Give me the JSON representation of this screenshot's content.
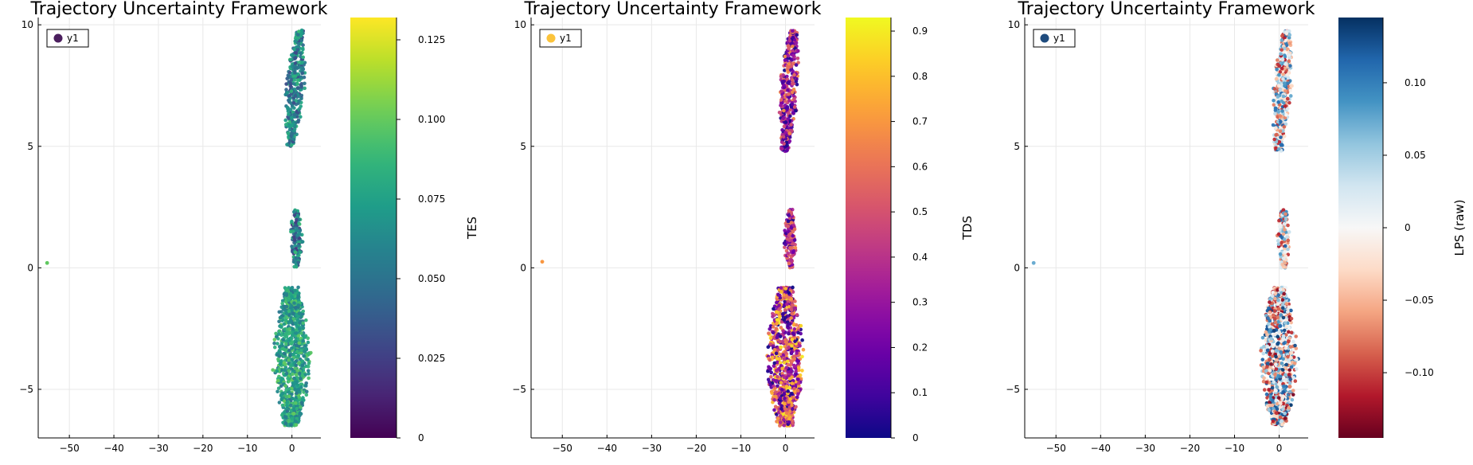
{
  "chart_data": [
    {
      "type": "scatter",
      "title": "Trajectory Uncertainty Framework",
      "xlabel": "",
      "ylabel": "",
      "xlim": [
        -57,
        6.5
      ],
      "ylim": [
        -7,
        10.3
      ],
      "xticks": [
        "−50",
        "−40",
        "−30",
        "−20",
        "−10",
        "0"
      ],
      "yticks": [
        "10",
        "5",
        "0",
        "−5"
      ],
      "grid": true,
      "legend": {
        "label": "y1",
        "position": "top-left",
        "marker_color": "#4b1f5e"
      },
      "colorbar": {
        "colormap": "viridis",
        "label": "",
        "range": [
          0,
          0.132
        ],
        "ticks": [
          "0",
          "0.025",
          "0.050",
          "0.075",
          "0.100",
          "0.125"
        ]
      },
      "clusters": [
        {
          "name": "outlier",
          "points": [
            {
              "x": -55,
              "y": 0.2
            }
          ]
        },
        {
          "name": "top",
          "x_range": [
            -1.5,
            3
          ],
          "y_range": [
            5.0,
            9.8
          ],
          "value_range": [
            0.03,
            0.09
          ]
        },
        {
          "name": "middle",
          "x_range": [
            -0.5,
            2.5
          ],
          "y_range": [
            0,
            2.4
          ],
          "value_range": [
            0.02,
            0.09
          ]
        },
        {
          "name": "bottom",
          "x_range": [
            -4.5,
            4.5
          ],
          "y_range": [
            -6.5,
            -0.8
          ],
          "value_range": [
            0.05,
            0.1
          ]
        }
      ]
    },
    {
      "type": "scatter",
      "title": "Trajectory Uncertainty Framework",
      "xlabel": "",
      "ylabel": "",
      "xlim": [
        -57,
        6.5
      ],
      "ylim": [
        -7,
        10.3
      ],
      "xticks": [
        "−50",
        "−40",
        "−30",
        "−20",
        "−10",
        "0"
      ],
      "yticks": [
        "10",
        "5",
        "0",
        "−5"
      ],
      "grid": true,
      "legend": {
        "label": "y1",
        "position": "top-left",
        "marker_color": "#fbc33b"
      },
      "colorbar": {
        "colormap": "plasma",
        "label": "TES",
        "range": [
          0,
          0.93
        ],
        "ticks": [
          "0",
          "0.1",
          "0.2",
          "0.3",
          "0.4",
          "0.5",
          "0.6",
          "0.7",
          "0.8",
          "0.9"
        ]
      },
      "clusters": [
        {
          "name": "outlier",
          "points": [
            {
              "x": -54.5,
              "y": 0.25
            }
          ]
        },
        {
          "name": "top",
          "x_range": [
            -1.5,
            3
          ],
          "y_range": [
            4.8,
            9.8
          ],
          "value_range": [
            0,
            0.7
          ]
        },
        {
          "name": "middle",
          "x_range": [
            -0.5,
            2.5
          ],
          "y_range": [
            0,
            2.4
          ],
          "value_range": [
            0,
            0.7
          ]
        },
        {
          "name": "bottom",
          "x_range": [
            -4.5,
            4.5
          ],
          "y_range": [
            -6.5,
            -0.8
          ],
          "value_range": [
            0,
            0.9
          ]
        }
      ]
    },
    {
      "type": "scatter",
      "title": "Trajectory Uncertainty Framework",
      "xlabel": "",
      "ylabel": "",
      "xlim": [
        -57,
        6.5
      ],
      "ylim": [
        -7,
        10.3
      ],
      "xticks": [
        "−50",
        "−40",
        "−30",
        "−20",
        "−10",
        "0"
      ],
      "yticks": [
        "10",
        "5",
        "0",
        "−5"
      ],
      "grid": true,
      "legend": {
        "label": "y1",
        "position": "top-left",
        "marker_color": "#1f4c7e"
      },
      "colorbar": {
        "colormap": "RdBu",
        "label": "TDS",
        "side_label": "LPS (raw)",
        "range": [
          -0.145,
          0.145
        ],
        "ticks": [
          "−0.10",
          "−0.05",
          "0",
          "0.05",
          "0.10"
        ],
        "tick_values": [
          -0.1,
          -0.05,
          0,
          0.05,
          0.1
        ]
      },
      "clusters": [
        {
          "name": "outlier",
          "points": [
            {
              "x": -55,
              "y": 0.2
            }
          ]
        },
        {
          "name": "top",
          "x_range": [
            -1.5,
            3
          ],
          "y_range": [
            4.8,
            9.8
          ],
          "value_range": [
            -0.12,
            0.12
          ]
        },
        {
          "name": "middle",
          "x_range": [
            -0.5,
            2.5
          ],
          "y_range": [
            0,
            2.4
          ],
          "value_range": [
            -0.12,
            0.12
          ]
        },
        {
          "name": "bottom",
          "x_range": [
            -4.5,
            4.5
          ],
          "y_range": [
            -6.5,
            -0.8
          ],
          "value_range": [
            -0.14,
            0.14
          ]
        }
      ]
    }
  ]
}
